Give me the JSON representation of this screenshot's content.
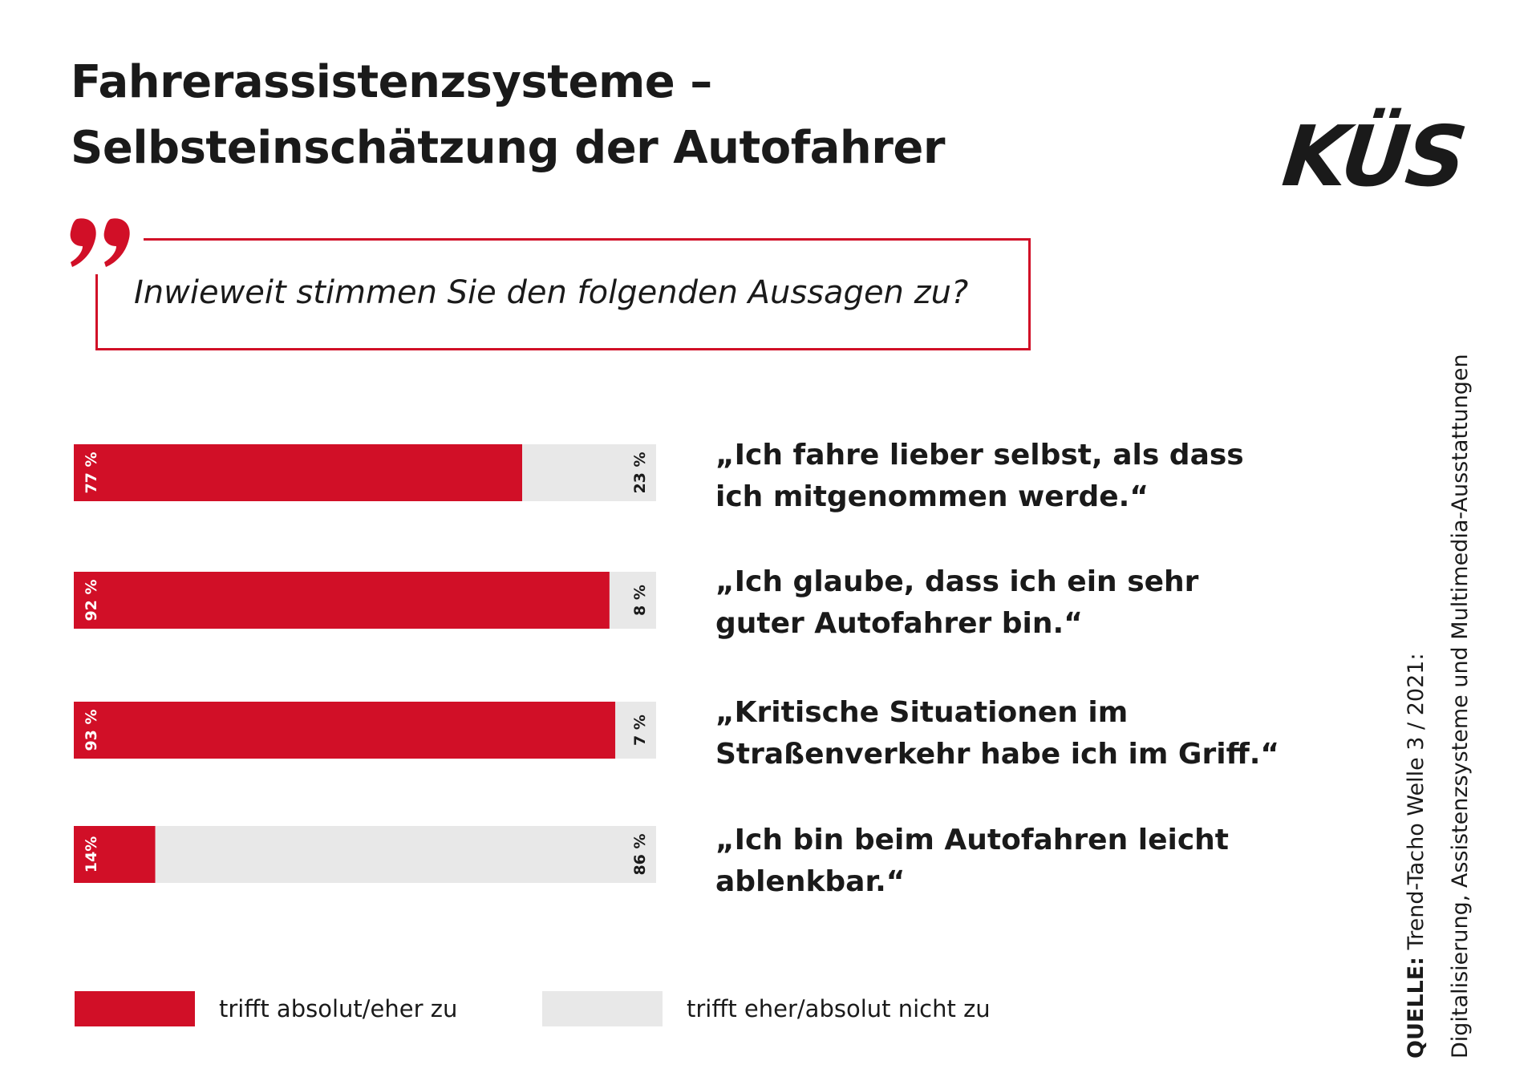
{
  "title_lines": [
    "Fahrerassistenzsysteme –",
    "Selbsteinschätzung der Autofahrer"
  ],
  "logo": "KÜS",
  "question": "Inwieweit stimmen Sie den folgenden Aussagen zu?",
  "colors": {
    "agree": "#d10f27",
    "disagree": "#e8e8e8",
    "text": "#1a1a1a"
  },
  "chart_data": {
    "type": "bar",
    "orientation": "horizontal",
    "stacked": true,
    "categories": [
      "„Ich fahre lieber selbst, als dass ich mitgenommen werde.“",
      "„Ich glaube, dass ich ein sehr guter Autofahrer bin.“",
      "„Kritische Situationen im Straßenverkehr habe ich im Griff.“",
      "„Ich bin beim Autofahren leicht ablenkbar.“"
    ],
    "category_lines": [
      [
        "„Ich fahre lieber selbst, als dass",
        "ich mitgenommen werde.“"
      ],
      [
        "„Ich glaube, dass ich ein sehr",
        "guter Autofahrer bin.“"
      ],
      [
        "„Kritische Situationen im",
        "Straßenverkehr habe ich im Griff.“"
      ],
      [
        "„Ich bin beim Autofahren leicht",
        "ablenkbar.“"
      ]
    ],
    "series": [
      {
        "name": "trifft absolut/eher zu",
        "values": [
          77,
          92,
          93,
          14
        ],
        "labels": [
          "77 %",
          "92 %",
          "93 %",
          "14%"
        ]
      },
      {
        "name": "trifft eher/absolut nicht zu",
        "values": [
          23,
          8,
          7,
          86
        ],
        "labels": [
          "23 %",
          "8 %",
          "7 %",
          "86 %"
        ]
      }
    ],
    "xlim": [
      0,
      100
    ],
    "legend_position": "bottom"
  },
  "source": {
    "label": "QUELLE:",
    "line1": "Trend-Tacho Welle 3 / 2021:",
    "line2": "Digitalisierung, Assistenzsysteme und Multimedia-Ausstattungen"
  }
}
